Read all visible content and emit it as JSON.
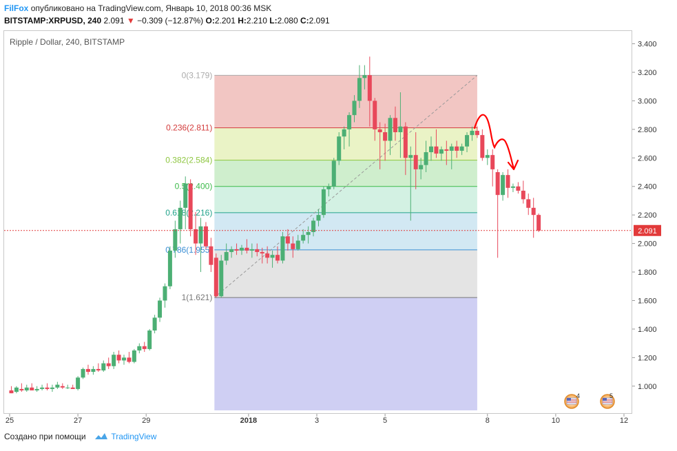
{
  "header": {
    "author": "FilFox",
    "published": "опубликовано на TradingView.com, Январь 10, 2018 00:36 MSK",
    "symbol": "BITSTAMP:XRPUSD, 240",
    "last": "2.091",
    "change": "−0.309 (−12.87%)",
    "ohlc": {
      "o_label": "O:",
      "o": "2.201",
      "h_label": "H:",
      "h": "2.210",
      "l_label": "L:",
      "l": "2.080",
      "c_label": "C:",
      "c": "2.091"
    }
  },
  "chart_title": "Ripple / Dollar, 240, BITSTAMP",
  "footer": {
    "created": "Создано при помощи",
    "brand": "TradingView"
  },
  "events": [
    {
      "count": "4"
    },
    {
      "count": "5"
    }
  ],
  "colors": {
    "up": "#4caf74",
    "down": "#e8485a",
    "price_line": "#e23a3a",
    "annotation": "#ff0000"
  },
  "chart_data": {
    "type": "candlestick",
    "title": "Ripple / Dollar, 240, BITSTAMP",
    "y_range": [
      0.83,
      3.48
    ],
    "x_range": [
      0,
      18.0
    ],
    "y_ticks": [
      "1.000",
      "1.200",
      "1.400",
      "1.600",
      "1.800",
      "2.000",
      "2.200",
      "2.400",
      "2.600",
      "2.800",
      "3.000",
      "3.200",
      "3.400"
    ],
    "x_ticks": [
      {
        "label": "25",
        "x": 0
      },
      {
        "label": "27",
        "x": 2
      },
      {
        "label": "29",
        "x": 4
      },
      {
        "label": "2018",
        "x": 7
      },
      {
        "label": "3",
        "x": 9
      },
      {
        "label": "5",
        "x": 11
      },
      {
        "label": "8",
        "x": 14
      },
      {
        "label": "10",
        "x": 16
      },
      {
        "label": "12",
        "x": 18
      }
    ],
    "current_price": {
      "value": 2.091,
      "label": "2.091"
    },
    "fibonacci": {
      "start": {
        "x": 6.0,
        "y": 1.621
      },
      "end": {
        "x": 13.7,
        "y": 3.179
      },
      "levels": [
        {
          "ratio": "0",
          "price": 3.179,
          "label": "0(3.179)",
          "line_color": "#aaaaaa",
          "fill": "#f2c6c3"
        },
        {
          "ratio": "0.236",
          "price": 2.811,
          "label": "0.236(2.811)",
          "line_color": "#d33b3b",
          "fill": "#eaf3c6"
        },
        {
          "ratio": "0.382",
          "price": 2.584,
          "label": "0.382(2.584)",
          "line_color": "#8dc63f",
          "fill": "#cfeecd"
        },
        {
          "ratio": "0.5",
          "price": 2.4,
          "label": "0.5(2.400)",
          "line_color": "#3cba4a",
          "fill": "#d3f1e3"
        },
        {
          "ratio": "0.618",
          "price": 2.216,
          "label": "0.618(2.216)",
          "line_color": "#22a38b",
          "fill": "#d2e8f3"
        },
        {
          "ratio": "0.786",
          "price": 1.955,
          "label": "0.786(1.955)",
          "line_color": "#3a8ed4",
          "fill": "#e4e4e4"
        },
        {
          "ratio": "1",
          "price": 1.621,
          "label": "1(1.621)",
          "line_color": "#777777",
          "fill": "#cfcff3"
        }
      ],
      "extension_bottom": 0.83
    },
    "candles": [
      {
        "x": 0.05,
        "o": 0.97,
        "h": 1.0,
        "l": 0.95,
        "c": 0.95
      },
      {
        "x": 0.2,
        "o": 0.96,
        "h": 1.0,
        "l": 0.95,
        "c": 0.99
      },
      {
        "x": 0.35,
        "o": 0.98,
        "h": 1.02,
        "l": 0.96,
        "c": 0.97
      },
      {
        "x": 0.5,
        "o": 0.97,
        "h": 1.01,
        "l": 0.96,
        "c": 0.99
      },
      {
        "x": 0.65,
        "o": 0.99,
        "h": 1.02,
        "l": 0.97,
        "c": 0.97
      },
      {
        "x": 0.8,
        "o": 0.97,
        "h": 1.0,
        "l": 0.96,
        "c": 0.98
      },
      {
        "x": 0.95,
        "o": 0.98,
        "h": 1.01,
        "l": 0.97,
        "c": 0.99
      },
      {
        "x": 1.1,
        "o": 0.99,
        "h": 1.02,
        "l": 0.97,
        "c": 0.98
      },
      {
        "x": 1.25,
        "o": 0.98,
        "h": 1.01,
        "l": 0.96,
        "c": 0.99
      },
      {
        "x": 1.4,
        "o": 0.99,
        "h": 1.03,
        "l": 0.98,
        "c": 1.01
      },
      {
        "x": 1.55,
        "o": 1.0,
        "h": 1.02,
        "l": 0.98,
        "c": 0.99
      },
      {
        "x": 1.7,
        "o": 0.99,
        "h": 1.01,
        "l": 0.98,
        "c": 0.99
      },
      {
        "x": 1.85,
        "o": 0.99,
        "h": 1.01,
        "l": 0.98,
        "c": 0.98
      },
      {
        "x": 2.0,
        "o": 0.98,
        "h": 1.07,
        "l": 0.97,
        "c": 1.06
      },
      {
        "x": 2.15,
        "o": 1.06,
        "h": 1.13,
        "l": 1.05,
        "c": 1.12
      },
      {
        "x": 2.3,
        "o": 1.12,
        "h": 1.15,
        "l": 1.08,
        "c": 1.1
      },
      {
        "x": 2.45,
        "o": 1.1,
        "h": 1.14,
        "l": 1.08,
        "c": 1.12
      },
      {
        "x": 2.6,
        "o": 1.12,
        "h": 1.16,
        "l": 1.1,
        "c": 1.11
      },
      {
        "x": 2.75,
        "o": 1.11,
        "h": 1.18,
        "l": 1.1,
        "c": 1.16
      },
      {
        "x": 2.9,
        "o": 1.16,
        "h": 1.2,
        "l": 1.12,
        "c": 1.14
      },
      {
        "x": 3.05,
        "o": 1.14,
        "h": 1.24,
        "l": 1.12,
        "c": 1.22
      },
      {
        "x": 3.2,
        "o": 1.22,
        "h": 1.25,
        "l": 1.16,
        "c": 1.18
      },
      {
        "x": 3.35,
        "o": 1.18,
        "h": 1.22,
        "l": 1.15,
        "c": 1.2
      },
      {
        "x": 3.5,
        "o": 1.2,
        "h": 1.24,
        "l": 1.16,
        "c": 1.17
      },
      {
        "x": 3.65,
        "o": 1.17,
        "h": 1.26,
        "l": 1.16,
        "c": 1.25
      },
      {
        "x": 3.8,
        "o": 1.25,
        "h": 1.3,
        "l": 1.23,
        "c": 1.28
      },
      {
        "x": 3.95,
        "o": 1.28,
        "h": 1.31,
        "l": 1.24,
        "c": 1.26
      },
      {
        "x": 4.1,
        "o": 1.26,
        "h": 1.4,
        "l": 1.25,
        "c": 1.39
      },
      {
        "x": 4.25,
        "o": 1.39,
        "h": 1.5,
        "l": 1.37,
        "c": 1.48
      },
      {
        "x": 4.4,
        "o": 1.48,
        "h": 1.62,
        "l": 1.45,
        "c": 1.6
      },
      {
        "x": 4.55,
        "o": 1.6,
        "h": 1.72,
        "l": 1.55,
        "c": 1.7
      },
      {
        "x": 4.7,
        "o": 1.7,
        "h": 1.98,
        "l": 1.68,
        "c": 1.95
      },
      {
        "x": 4.85,
        "o": 1.95,
        "h": 2.16,
        "l": 1.9,
        "c": 2.1
      },
      {
        "x": 5.0,
        "o": 2.1,
        "h": 2.3,
        "l": 2.0,
        "c": 2.25
      },
      {
        "x": 5.15,
        "o": 2.25,
        "h": 2.47,
        "l": 2.1,
        "c": 2.42
      },
      {
        "x": 5.3,
        "o": 2.42,
        "h": 2.45,
        "l": 2.05,
        "c": 2.1
      },
      {
        "x": 5.45,
        "o": 2.1,
        "h": 2.22,
        "l": 1.92,
        "c": 2.0
      },
      {
        "x": 5.6,
        "o": 2.0,
        "h": 2.18,
        "l": 1.8,
        "c": 2.12
      },
      {
        "x": 5.75,
        "o": 2.12,
        "h": 2.15,
        "l": 1.96,
        "c": 1.98
      },
      {
        "x": 5.9,
        "o": 1.98,
        "h": 2.04,
        "l": 1.8,
        "c": 1.85
      },
      {
        "x": 6.05,
        "o": 1.9,
        "h": 1.93,
        "l": 1.62,
        "c": 1.63
      },
      {
        "x": 6.2,
        "o": 1.63,
        "h": 1.92,
        "l": 1.62,
        "c": 1.88
      },
      {
        "x": 6.35,
        "o": 1.88,
        "h": 2.0,
        "l": 1.85,
        "c": 1.94
      },
      {
        "x": 6.5,
        "o": 1.94,
        "h": 1.98,
        "l": 1.9,
        "c": 1.96
      },
      {
        "x": 6.65,
        "o": 1.96,
        "h": 2.0,
        "l": 1.92,
        "c": 1.95
      },
      {
        "x": 6.8,
        "o": 1.95,
        "h": 1.99,
        "l": 1.92,
        "c": 1.97
      },
      {
        "x": 6.95,
        "o": 1.97,
        "h": 2.03,
        "l": 1.93,
        "c": 1.95
      },
      {
        "x": 7.1,
        "o": 1.95,
        "h": 2.0,
        "l": 1.9,
        "c": 1.96
      },
      {
        "x": 7.25,
        "o": 1.96,
        "h": 2.0,
        "l": 1.91,
        "c": 1.94
      },
      {
        "x": 7.4,
        "o": 1.94,
        "h": 1.97,
        "l": 1.86,
        "c": 1.93
      },
      {
        "x": 7.55,
        "o": 1.93,
        "h": 1.98,
        "l": 1.86,
        "c": 1.9
      },
      {
        "x": 7.7,
        "o": 1.9,
        "h": 1.95,
        "l": 1.83,
        "c": 1.92
      },
      {
        "x": 7.85,
        "o": 1.92,
        "h": 1.98,
        "l": 1.86,
        "c": 1.88
      },
      {
        "x": 8.0,
        "o": 1.88,
        "h": 2.08,
        "l": 1.86,
        "c": 2.05
      },
      {
        "x": 8.15,
        "o": 2.05,
        "h": 2.1,
        "l": 1.95,
        "c": 2.0
      },
      {
        "x": 8.3,
        "o": 2.0,
        "h": 2.05,
        "l": 1.9,
        "c": 1.96
      },
      {
        "x": 8.45,
        "o": 1.96,
        "h": 2.06,
        "l": 1.95,
        "c": 2.02
      },
      {
        "x": 8.6,
        "o": 2.02,
        "h": 2.1,
        "l": 2.0,
        "c": 2.06
      },
      {
        "x": 8.75,
        "o": 2.06,
        "h": 2.12,
        "l": 2.0,
        "c": 2.08
      },
      {
        "x": 8.9,
        "o": 2.08,
        "h": 2.18,
        "l": 2.05,
        "c": 2.16
      },
      {
        "x": 9.05,
        "o": 2.16,
        "h": 2.24,
        "l": 2.12,
        "c": 2.2
      },
      {
        "x": 9.2,
        "o": 2.2,
        "h": 2.4,
        "l": 2.18,
        "c": 2.38
      },
      {
        "x": 9.35,
        "o": 2.38,
        "h": 2.42,
        "l": 2.33,
        "c": 2.4
      },
      {
        "x": 9.5,
        "o": 2.4,
        "h": 2.6,
        "l": 2.38,
        "c": 2.58
      },
      {
        "x": 9.65,
        "o": 2.58,
        "h": 2.78,
        "l": 2.55,
        "c": 2.75
      },
      {
        "x": 9.8,
        "o": 2.75,
        "h": 2.82,
        "l": 2.66,
        "c": 2.8
      },
      {
        "x": 9.95,
        "o": 2.8,
        "h": 2.92,
        "l": 2.68,
        "c": 2.9
      },
      {
        "x": 10.1,
        "o": 2.9,
        "h": 3.04,
        "l": 2.85,
        "c": 3.0
      },
      {
        "x": 10.25,
        "o": 3.0,
        "h": 3.25,
        "l": 2.95,
        "c": 3.16
      },
      {
        "x": 10.4,
        "o": 3.16,
        "h": 3.25,
        "l": 3.08,
        "c": 3.18
      },
      {
        "x": 10.55,
        "o": 3.18,
        "h": 3.31,
        "l": 2.82,
        "c": 3.0
      },
      {
        "x": 10.7,
        "o": 3.0,
        "h": 3.02,
        "l": 2.72,
        "c": 2.8
      },
      {
        "x": 10.85,
        "o": 2.8,
        "h": 2.85,
        "l": 2.52,
        "c": 2.78
      },
      {
        "x": 11.0,
        "o": 2.78,
        "h": 2.84,
        "l": 2.58,
        "c": 2.72
      },
      {
        "x": 11.15,
        "o": 2.72,
        "h": 2.9,
        "l": 2.62,
        "c": 2.88
      },
      {
        "x": 11.3,
        "o": 2.88,
        "h": 2.96,
        "l": 2.72,
        "c": 2.78
      },
      {
        "x": 11.45,
        "o": 2.78,
        "h": 3.06,
        "l": 2.6,
        "c": 2.82
      },
      {
        "x": 11.6,
        "o": 2.82,
        "h": 2.85,
        "l": 2.48,
        "c": 2.6
      },
      {
        "x": 11.75,
        "o": 2.6,
        "h": 2.68,
        "l": 2.16,
        "c": 2.62
      },
      {
        "x": 11.9,
        "o": 2.62,
        "h": 2.78,
        "l": 2.38,
        "c": 2.52
      },
      {
        "x": 12.05,
        "o": 2.52,
        "h": 2.6,
        "l": 2.45,
        "c": 2.55
      },
      {
        "x": 12.2,
        "o": 2.55,
        "h": 2.72,
        "l": 2.5,
        "c": 2.64
      },
      {
        "x": 12.35,
        "o": 2.64,
        "h": 2.75,
        "l": 2.58,
        "c": 2.68
      },
      {
        "x": 12.5,
        "o": 2.68,
        "h": 2.8,
        "l": 2.6,
        "c": 2.63
      },
      {
        "x": 12.65,
        "o": 2.63,
        "h": 2.68,
        "l": 2.58,
        "c": 2.66
      },
      {
        "x": 12.8,
        "o": 2.66,
        "h": 2.72,
        "l": 2.55,
        "c": 2.65
      },
      {
        "x": 12.95,
        "o": 2.65,
        "h": 2.7,
        "l": 2.52,
        "c": 2.68
      },
      {
        "x": 13.1,
        "o": 2.68,
        "h": 2.72,
        "l": 2.6,
        "c": 2.65
      },
      {
        "x": 13.25,
        "o": 2.65,
        "h": 2.7,
        "l": 2.62,
        "c": 2.68
      },
      {
        "x": 13.4,
        "o": 2.68,
        "h": 2.78,
        "l": 2.64,
        "c": 2.76
      },
      {
        "x": 13.55,
        "o": 2.76,
        "h": 2.82,
        "l": 2.72,
        "c": 2.79
      },
      {
        "x": 13.7,
        "o": 2.79,
        "h": 2.82,
        "l": 2.74,
        "c": 2.76
      },
      {
        "x": 13.85,
        "o": 2.76,
        "h": 2.8,
        "l": 2.58,
        "c": 2.6
      },
      {
        "x": 14.0,
        "o": 2.6,
        "h": 2.66,
        "l": 2.55,
        "c": 2.62
      },
      {
        "x": 14.15,
        "o": 2.62,
        "h": 2.66,
        "l": 2.4,
        "c": 2.52
      },
      {
        "x": 14.3,
        "o": 2.5,
        "h": 2.52,
        "l": 1.9,
        "c": 2.34
      },
      {
        "x": 14.45,
        "o": 2.34,
        "h": 2.5,
        "l": 2.3,
        "c": 2.48
      },
      {
        "x": 14.6,
        "o": 2.48,
        "h": 2.52,
        "l": 2.32,
        "c": 2.39
      },
      {
        "x": 14.75,
        "o": 2.39,
        "h": 2.42,
        "l": 2.36,
        "c": 2.4
      },
      {
        "x": 14.9,
        "o": 2.4,
        "h": 2.43,
        "l": 2.35,
        "c": 2.37
      },
      {
        "x": 15.05,
        "o": 2.37,
        "h": 2.44,
        "l": 2.28,
        "c": 2.31
      },
      {
        "x": 15.2,
        "o": 2.31,
        "h": 2.35,
        "l": 2.2,
        "c": 2.25
      },
      {
        "x": 15.35,
        "o": 2.25,
        "h": 2.32,
        "l": 2.04,
        "c": 2.2
      },
      {
        "x": 15.5,
        "o": 2.2,
        "h": 2.21,
        "l": 2.08,
        "c": 2.09
      }
    ]
  }
}
